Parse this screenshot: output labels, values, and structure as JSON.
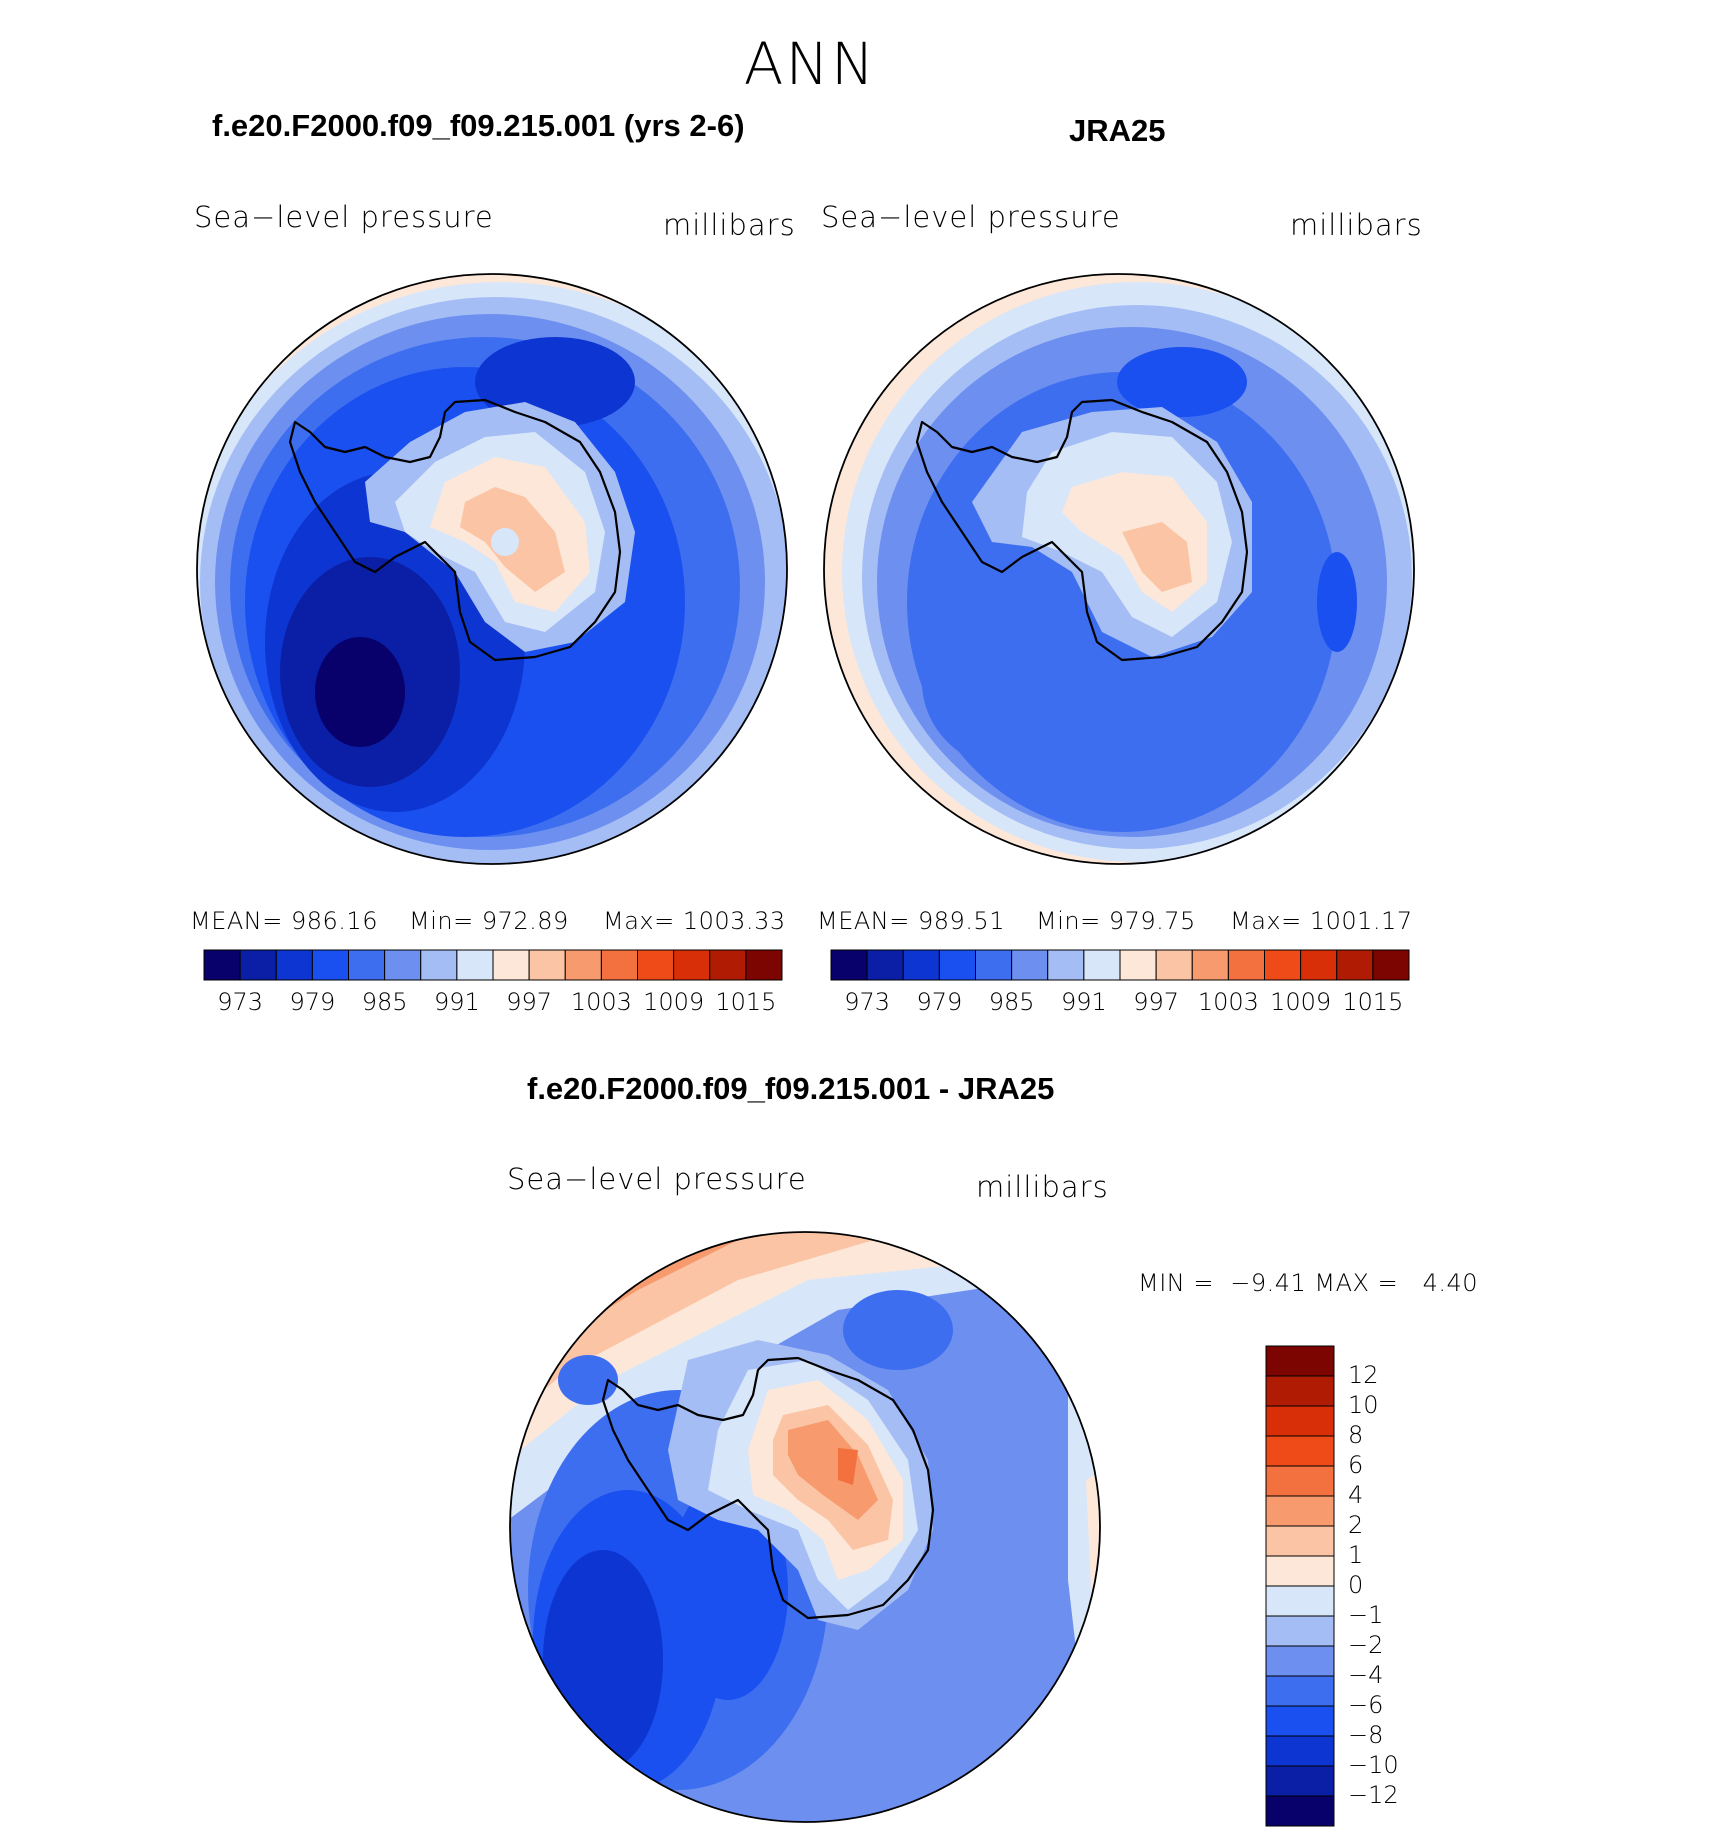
{
  "title": "ANN",
  "panels": [
    {
      "heading": "f.e20.F2000.f09_f09.215.001 (yrs 2-6)",
      "left_label": "Sea−level pressure",
      "right_label": "millibars",
      "stats": {
        "mean": "MEAN= 986.16",
        "min": "Min= 972.89",
        "max": "Max= 1003.33"
      }
    },
    {
      "heading": "JRA25",
      "left_label": "Sea−level pressure",
      "right_label": "millibars",
      "stats": {
        "mean": "MEAN= 989.51",
        "min": "Min= 979.75",
        "max": "Max= 1001.17"
      }
    },
    {
      "heading": "f.e20.F2000.f09_f09.215.001 - JRA25",
      "left_label": "Sea−level pressure",
      "right_label": "millibars",
      "stats": {
        "minmax": "MIN =  −9.41 MAX =   4.40"
      }
    }
  ],
  "colorbar_top": {
    "colors": [
      "#08006b",
      "#0a1fa6",
      "#0d35d2",
      "#1a4ff0",
      "#3e6ef0",
      "#6c8ff0",
      "#a4bdf5",
      "#d8e6fa",
      "#fde7d9",
      "#fbc4a4",
      "#f79a6e",
      "#f3703f",
      "#ee4b18",
      "#d92f08",
      "#b01c03",
      "#7c0502"
    ],
    "labels": [
      "973",
      "979",
      "985",
      "991",
      "997",
      "1003",
      "1009",
      "1015"
    ]
  },
  "colorbar_diff": {
    "colors_top_to_bottom": [
      "#7c0502",
      "#b01c03",
      "#d92f08",
      "#ee4b18",
      "#f3703f",
      "#f79a6e",
      "#fbc4a4",
      "#fde7d9",
      "#d8e6fa",
      "#a4bdf5",
      "#6c8ff0",
      "#3e6ef0",
      "#1a4ff0",
      "#0d35d2",
      "#0a1fa6",
      "#08006b"
    ],
    "labels": [
      "12",
      "10",
      "8",
      "6",
      "4",
      "2",
      "1",
      "0",
      "−1",
      "−2",
      "−4",
      "−6",
      "−8",
      "−10",
      "−12"
    ]
  }
}
